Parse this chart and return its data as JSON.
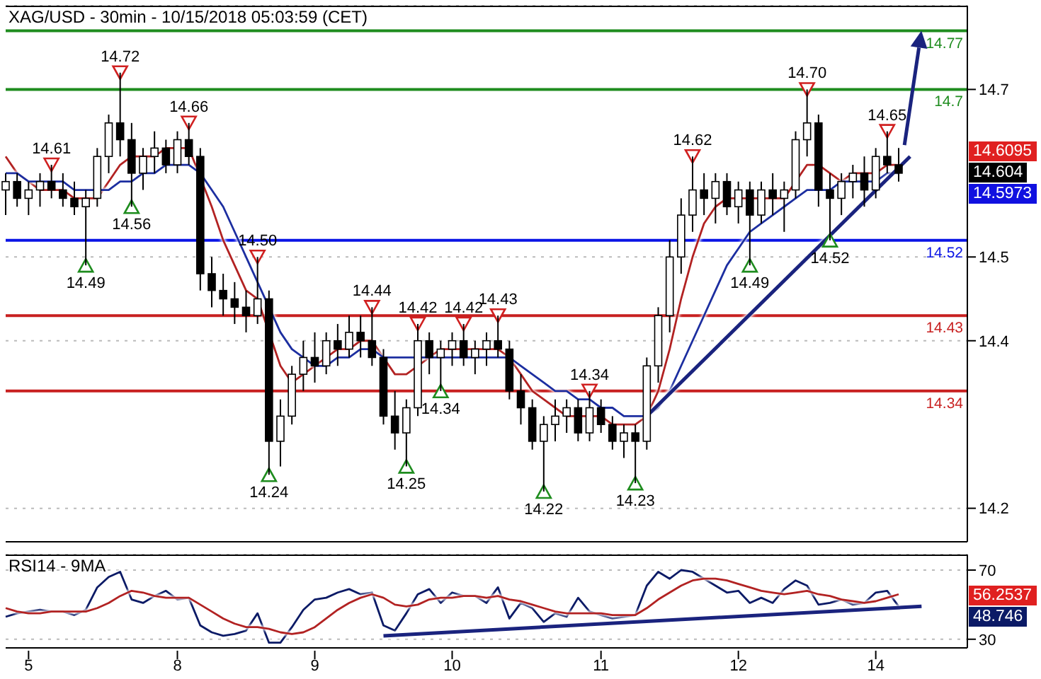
{
  "chart_data": [
    {
      "type": "candlestick",
      "title": "XAG/USD - 30min - 10/15/2018 05:03:59 (CET)",
      "color": "#000000",
      "tick_labels": "y",
      "grid": "y",
      "categories": [
        null,
        null,
        "5",
        null,
        null,
        null,
        null,
        null,
        null,
        null,
        null,
        null,
        null,
        null,
        null,
        "8",
        null,
        null,
        null,
        null,
        null,
        null,
        null,
        null,
        null,
        null,
        null,
        "9",
        null,
        null,
        null,
        null,
        null,
        null,
        null,
        null,
        null,
        null,
        null,
        "10",
        null,
        null,
        null,
        null,
        null,
        null,
        null,
        null,
        null,
        null,
        null,
        null,
        "11",
        null,
        null,
        null,
        null,
        null,
        null,
        null,
        null,
        null,
        null,
        null,
        "12",
        null,
        null,
        null,
        null,
        null,
        null,
        null,
        null,
        null,
        null,
        null,
        "14",
        null,
        null,
        null,
        null,
        null,
        null,
        null,
        null
      ],
      "ohlc": [
        [
          14.58,
          14.6,
          14.55,
          14.59
        ],
        [
          14.59,
          14.6,
          14.56,
          14.57
        ],
        [
          14.57,
          14.59,
          14.55,
          14.58
        ],
        [
          14.58,
          14.6,
          14.56,
          14.59
        ],
        [
          14.59,
          14.61,
          14.57,
          14.58
        ],
        [
          14.58,
          14.6,
          14.56,
          14.57
        ],
        [
          14.57,
          14.59,
          14.55,
          14.56
        ],
        [
          14.56,
          14.58,
          14.49,
          14.57
        ],
        [
          14.57,
          14.63,
          14.56,
          14.62
        ],
        [
          14.62,
          14.67,
          14.6,
          14.66
        ],
        [
          14.66,
          14.72,
          14.62,
          14.64
        ],
        [
          14.64,
          14.66,
          14.56,
          14.6
        ],
        [
          14.6,
          14.63,
          14.58,
          14.62
        ],
        [
          14.62,
          14.65,
          14.6,
          14.63
        ],
        [
          14.63,
          14.64,
          14.6,
          14.61
        ],
        [
          14.61,
          14.65,
          14.6,
          14.64
        ],
        [
          14.64,
          14.66,
          14.61,
          14.62
        ],
        [
          14.62,
          14.63,
          14.46,
          14.48
        ],
        [
          14.48,
          14.5,
          14.44,
          14.46
        ],
        [
          14.46,
          14.48,
          14.43,
          14.45
        ],
        [
          14.45,
          14.47,
          14.42,
          14.44
        ],
        [
          14.44,
          14.46,
          14.41,
          14.43
        ],
        [
          14.43,
          14.5,
          14.42,
          14.45
        ],
        [
          14.45,
          14.46,
          14.24,
          14.28
        ],
        [
          14.28,
          14.33,
          14.25,
          14.31
        ],
        [
          14.31,
          14.37,
          14.3,
          14.36
        ],
        [
          14.36,
          14.4,
          14.34,
          14.38
        ],
        [
          14.38,
          14.41,
          14.35,
          14.37
        ],
        [
          14.37,
          14.41,
          14.36,
          14.4
        ],
        [
          14.4,
          14.42,
          14.37,
          14.39
        ],
        [
          14.39,
          14.43,
          14.38,
          14.41
        ],
        [
          14.41,
          14.43,
          14.38,
          14.4
        ],
        [
          14.4,
          14.44,
          14.37,
          14.38
        ],
        [
          14.38,
          14.39,
          14.3,
          14.31
        ],
        [
          14.31,
          14.34,
          14.27,
          14.29
        ],
        [
          14.29,
          14.33,
          14.25,
          14.32
        ],
        [
          14.32,
          14.42,
          14.31,
          14.4
        ],
        [
          14.4,
          14.41,
          14.36,
          14.38
        ],
        [
          14.38,
          14.4,
          14.34,
          14.39
        ],
        [
          14.39,
          14.41,
          14.37,
          14.4
        ],
        [
          14.4,
          14.42,
          14.37,
          14.38
        ],
        [
          14.38,
          14.4,
          14.36,
          14.39
        ],
        [
          14.39,
          14.41,
          14.37,
          14.4
        ],
        [
          14.4,
          14.43,
          14.38,
          14.39
        ],
        [
          14.39,
          14.4,
          14.33,
          14.34
        ],
        [
          14.34,
          14.36,
          14.3,
          14.32
        ],
        [
          14.32,
          14.33,
          14.27,
          14.28
        ],
        [
          14.28,
          14.31,
          14.22,
          14.3
        ],
        [
          14.3,
          14.33,
          14.28,
          14.31
        ],
        [
          14.31,
          14.33,
          14.29,
          14.32
        ],
        [
          14.32,
          14.33,
          14.28,
          14.29
        ],
        [
          14.29,
          14.34,
          14.28,
          14.32
        ],
        [
          14.32,
          14.33,
          14.29,
          14.3
        ],
        [
          14.3,
          14.31,
          14.27,
          14.28
        ],
        [
          14.28,
          14.3,
          14.26,
          14.29
        ],
        [
          14.29,
          14.3,
          14.23,
          14.28
        ],
        [
          14.28,
          14.38,
          14.27,
          14.37
        ],
        [
          14.37,
          14.44,
          14.35,
          14.43
        ],
        [
          14.43,
          14.52,
          14.41,
          14.5
        ],
        [
          14.5,
          14.57,
          14.48,
          14.55
        ],
        [
          14.55,
          14.62,
          14.53,
          14.58
        ],
        [
          14.58,
          14.6,
          14.55,
          14.57
        ],
        [
          14.57,
          14.6,
          14.54,
          14.59
        ],
        [
          14.59,
          14.6,
          14.55,
          14.56
        ],
        [
          14.56,
          14.59,
          14.54,
          14.58
        ],
        [
          14.58,
          14.59,
          14.49,
          14.55
        ],
        [
          14.55,
          14.59,
          14.54,
          14.58
        ],
        [
          14.58,
          14.6,
          14.55,
          14.57
        ],
        [
          14.57,
          14.59,
          14.53,
          14.58
        ],
        [
          14.58,
          14.65,
          14.57,
          14.64
        ],
        [
          14.64,
          14.7,
          14.62,
          14.66
        ],
        [
          14.66,
          14.67,
          14.56,
          14.58
        ],
        [
          14.58,
          14.6,
          14.52,
          14.57
        ],
        [
          14.57,
          14.6,
          14.55,
          14.59
        ],
        [
          14.59,
          14.61,
          14.57,
          14.6
        ],
        [
          14.6,
          14.62,
          14.56,
          14.58
        ],
        [
          14.58,
          14.63,
          14.57,
          14.62
        ],
        [
          14.62,
          14.65,
          14.6,
          14.61
        ],
        [
          14.61,
          14.63,
          14.59,
          14.6
        ],
        null,
        null,
        null,
        null,
        null,
        null
      ],
      "series": [
        {
          "type": "line",
          "color": "#b22222",
          "values": [
            14.62,
            14.6,
            14.59,
            14.58,
            14.58,
            14.58,
            14.57,
            14.57,
            14.57,
            14.59,
            14.61,
            14.62,
            14.62,
            14.62,
            14.63,
            14.63,
            14.63,
            null,
            14.56,
            14.52,
            14.49,
            14.46,
            14.45,
            null,
            14.37,
            14.35,
            14.36,
            14.37,
            14.38,
            14.39,
            14.39,
            14.4,
            14.4,
            14.38,
            14.36,
            14.36,
            14.37,
            14.38,
            14.39,
            14.39,
            14.39,
            14.39,
            14.39,
            14.39,
            14.38,
            14.36,
            14.34,
            14.33,
            14.32,
            14.31,
            14.31,
            14.31,
            14.31,
            14.3,
            14.3,
            14.3,
            14.31,
            14.34,
            14.39,
            14.45,
            14.5,
            14.54,
            14.56,
            14.57,
            14.57,
            14.57,
            14.57,
            14.57,
            14.57,
            14.59,
            14.61,
            14.61,
            14.6,
            14.59,
            14.6,
            14.6,
            14.6,
            14.61,
            14.61,
            null,
            null,
            null,
            null,
            null,
            null
          ]
        },
        {
          "type": "line",
          "color": "#1c2ea0",
          "values": [
            14.6,
            14.6,
            14.59,
            14.59,
            14.59,
            14.59,
            14.58,
            14.58,
            14.58,
            14.58,
            14.59,
            14.59,
            14.6,
            14.6,
            14.61,
            14.61,
            14.61,
            14.6,
            14.58,
            14.56,
            14.53,
            14.5,
            14.47,
            null,
            14.41,
            14.39,
            14.38,
            14.37,
            14.37,
            14.38,
            14.38,
            14.39,
            14.39,
            14.38,
            14.38,
            14.38,
            14.38,
            14.38,
            14.38,
            14.38,
            14.38,
            14.38,
            14.38,
            14.38,
            14.38,
            14.37,
            14.36,
            14.35,
            14.34,
            14.34,
            14.33,
            14.33,
            14.32,
            14.32,
            14.31,
            14.31,
            14.31,
            14.32,
            14.34,
            14.37,
            14.4,
            14.43,
            14.46,
            14.49,
            14.51,
            14.53,
            14.54,
            14.55,
            14.56,
            14.57,
            14.58,
            14.58,
            14.58,
            14.59,
            14.59,
            14.59,
            14.59,
            14.6,
            14.6,
            null,
            null,
            null,
            null,
            null,
            null
          ]
        },
        {
          "type": "line",
          "color": "#1a237e",
          "values": [
            null,
            null,
            null,
            null,
            null,
            null,
            null,
            null,
            null,
            null,
            null,
            null,
            null,
            null,
            null,
            null,
            null,
            null,
            null,
            null,
            null,
            null,
            null,
            null,
            null,
            null,
            null,
            null,
            null,
            null,
            null,
            null,
            null,
            null,
            null,
            null,
            null,
            null,
            null,
            null,
            null,
            null,
            null,
            null,
            null,
            null,
            null,
            null,
            null,
            null,
            null,
            null,
            null,
            null,
            null,
            null,
            14.31,
            null,
            null,
            null,
            null,
            null,
            null,
            null,
            null,
            null,
            null,
            null,
            null,
            null,
            null,
            null,
            null,
            null,
            null,
            null,
            null,
            null,
            null,
            14.62,
            null,
            null,
            null,
            null,
            null
          ]
        },
        {
          "type": "scatter",
          "marker": "triangle",
          "color": "#d02020",
          "values": [
            null,
            null,
            null,
            null,
            14.61,
            null,
            null,
            null,
            null,
            null,
            14.72,
            null,
            null,
            null,
            null,
            null,
            14.66,
            null,
            null,
            null,
            null,
            null,
            14.5,
            null,
            null,
            null,
            null,
            null,
            null,
            null,
            null,
            null,
            14.44,
            null,
            null,
            null,
            14.42,
            null,
            null,
            null,
            14.42,
            null,
            null,
            14.43,
            null,
            null,
            null,
            null,
            null,
            null,
            null,
            14.34,
            null,
            null,
            null,
            null,
            null,
            null,
            null,
            null,
            14.62,
            null,
            null,
            null,
            null,
            null,
            null,
            null,
            null,
            null,
            14.7,
            null,
            null,
            null,
            null,
            null,
            null,
            14.65,
            null,
            null,
            null,
            null,
            null,
            null,
            null
          ],
          "value_labels": [
            null,
            null,
            null,
            null,
            "14.61",
            null,
            null,
            null,
            null,
            null,
            "14.72",
            null,
            null,
            null,
            null,
            null,
            "14.66",
            null,
            null,
            null,
            null,
            null,
            "14.50",
            null,
            null,
            null,
            null,
            null,
            null,
            null,
            null,
            null,
            "14.44",
            null,
            null,
            null,
            "14.42",
            null,
            null,
            null,
            "14.42",
            null,
            null,
            "14.43",
            null,
            null,
            null,
            null,
            null,
            null,
            null,
            "14.34",
            null,
            null,
            null,
            null,
            null,
            null,
            null,
            null,
            "14.62",
            null,
            null,
            null,
            null,
            null,
            null,
            null,
            null,
            null,
            "14.70",
            null,
            null,
            null,
            null,
            null,
            null,
            "14.65",
            null,
            null,
            null,
            null,
            null,
            null,
            null
          ]
        },
        {
          "type": "scatter",
          "marker": "triangle",
          "color": "#1e8c1e",
          "values": [
            null,
            null,
            null,
            null,
            null,
            null,
            null,
            14.49,
            null,
            null,
            null,
            14.56,
            null,
            null,
            null,
            null,
            null,
            null,
            null,
            null,
            null,
            null,
            null,
            14.24,
            null,
            null,
            null,
            null,
            null,
            null,
            null,
            null,
            null,
            null,
            null,
            14.25,
            null,
            null,
            14.34,
            null,
            null,
            null,
            null,
            null,
            null,
            null,
            null,
            14.22,
            null,
            null,
            null,
            null,
            null,
            null,
            null,
            14.23,
            null,
            null,
            null,
            null,
            null,
            null,
            null,
            null,
            null,
            14.49,
            null,
            null,
            null,
            null,
            null,
            null,
            14.52,
            null,
            null,
            null,
            null,
            null,
            null,
            null,
            null,
            null,
            null,
            null,
            null
          ],
          "value_labels": [
            null,
            null,
            null,
            null,
            null,
            null,
            null,
            "14.49",
            null,
            null,
            null,
            "14.56",
            null,
            null,
            null,
            null,
            null,
            null,
            null,
            null,
            null,
            null,
            null,
            "14.24",
            null,
            null,
            null,
            null,
            null,
            null,
            null,
            null,
            null,
            null,
            null,
            "14.25",
            null,
            null,
            "14.34",
            null,
            null,
            null,
            null,
            null,
            null,
            null,
            null,
            "14.22",
            null,
            null,
            null,
            null,
            null,
            null,
            null,
            "14.23",
            null,
            null,
            null,
            null,
            null,
            null,
            null,
            null,
            null,
            "14.49",
            null,
            null,
            null,
            null,
            null,
            null,
            "14.52",
            null,
            null,
            null,
            null,
            null,
            null,
            null,
            null,
            null,
            null,
            null,
            null
          ]
        }
      ],
      "ylim": [
        14.16,
        14.8
      ],
      "yticks": [
        14.2,
        14.4,
        14.5,
        14.7
      ],
      "ref_lines": [
        {
          "axis": "y",
          "value": 14.77,
          "label": "14.77",
          "color": "#1e8c1e"
        },
        {
          "axis": "y",
          "value": 14.7,
          "label": "14.7",
          "color": "#1e8c1e"
        },
        {
          "axis": "y",
          "value": 14.52,
          "label": "14.52",
          "color": "#0a14e6"
        },
        {
          "axis": "y",
          "value": 14.43,
          "label": "14.43",
          "color": "#c82020"
        },
        {
          "axis": "y",
          "value": 14.34,
          "label": "14.34",
          "color": "#c82020"
        }
      ],
      "annotations": [
        "14.6095",
        "14.604",
        "14.5973"
      ]
    },
    {
      "type": "line",
      "title": "RSI14 - 9MA",
      "grid": "y",
      "categories": [
        null,
        null,
        "5",
        null,
        null,
        null,
        null,
        null,
        null,
        null,
        null,
        null,
        null,
        null,
        null,
        "8",
        null,
        null,
        null,
        null,
        null,
        null,
        null,
        null,
        null,
        null,
        null,
        "9",
        null,
        null,
        null,
        null,
        null,
        null,
        null,
        null,
        null,
        null,
        null,
        "10",
        null,
        null,
        null,
        null,
        null,
        null,
        null,
        null,
        null,
        null,
        null,
        null,
        "11",
        null,
        null,
        null,
        null,
        null,
        null,
        null,
        null,
        null,
        null,
        null,
        "12",
        null,
        null,
        null,
        null,
        null,
        null,
        null,
        null,
        null,
        null,
        null,
        "14",
        null,
        null,
        null,
        null,
        null,
        null,
        null,
        null
      ],
      "series": [
        {
          "color": "#0b1a66",
          "values": [
            43,
            45,
            46,
            47,
            46,
            46,
            44,
            47,
            60,
            66,
            69,
            53,
            51,
            55,
            58,
            53,
            54,
            38,
            34,
            32,
            33,
            35,
            45,
            28,
            28,
            37,
            47,
            53,
            54,
            57,
            59,
            56,
            57,
            38,
            35,
            45,
            56,
            59,
            51,
            57,
            55,
            55,
            51,
            60,
            42,
            51,
            48,
            40,
            45,
            43,
            54,
            46,
            44,
            42,
            43,
            44,
            61,
            69,
            65,
            70,
            69,
            65,
            61,
            57,
            58,
            51,
            54,
            51,
            59,
            64,
            61,
            50,
            51,
            53,
            50,
            51,
            57,
            58,
            49,
            null,
            null,
            null,
            null,
            null,
            null
          ]
        },
        {
          "color": "#b22222",
          "values": [
            48,
            46,
            45,
            45,
            46,
            46,
            46,
            46,
            48,
            51,
            55,
            58,
            57,
            55,
            54,
            54,
            54,
            50,
            46,
            42,
            39,
            37,
            37,
            36,
            34,
            33,
            34,
            37,
            42,
            47,
            51,
            54,
            56,
            54,
            50,
            49,
            50,
            53,
            54,
            54,
            55,
            55,
            54,
            55,
            53,
            52,
            50,
            48,
            46,
            45,
            45,
            45,
            45,
            44,
            44,
            44,
            48,
            53,
            57,
            61,
            64,
            65,
            65,
            64,
            62,
            60,
            58,
            57,
            56,
            57,
            58,
            56,
            55,
            53,
            52,
            51,
            52,
            54,
            56,
            null,
            null,
            null,
            null,
            null,
            null
          ]
        },
        {
          "color": "#1a237e",
          "values": [
            null,
            null,
            null,
            null,
            null,
            null,
            null,
            null,
            null,
            null,
            null,
            null,
            null,
            null,
            null,
            null,
            null,
            null,
            null,
            null,
            null,
            null,
            null,
            null,
            null,
            null,
            null,
            null,
            null,
            null,
            null,
            null,
            null,
            32,
            null,
            null,
            null,
            null,
            null,
            null,
            null,
            null,
            null,
            null,
            null,
            null,
            null,
            null,
            null,
            null,
            null,
            null,
            null,
            null,
            null,
            null,
            null,
            null,
            null,
            null,
            null,
            null,
            null,
            null,
            null,
            null,
            null,
            null,
            null,
            null,
            null,
            null,
            null,
            null,
            null,
            null,
            null,
            null,
            null,
            null,
            49,
            null,
            null,
            null,
            null
          ]
        }
      ],
      "ylim": [
        25,
        79
      ],
      "yticks": [
        30,
        70
      ],
      "annotations": [
        "56.2537",
        "48.746"
      ]
    }
  ]
}
